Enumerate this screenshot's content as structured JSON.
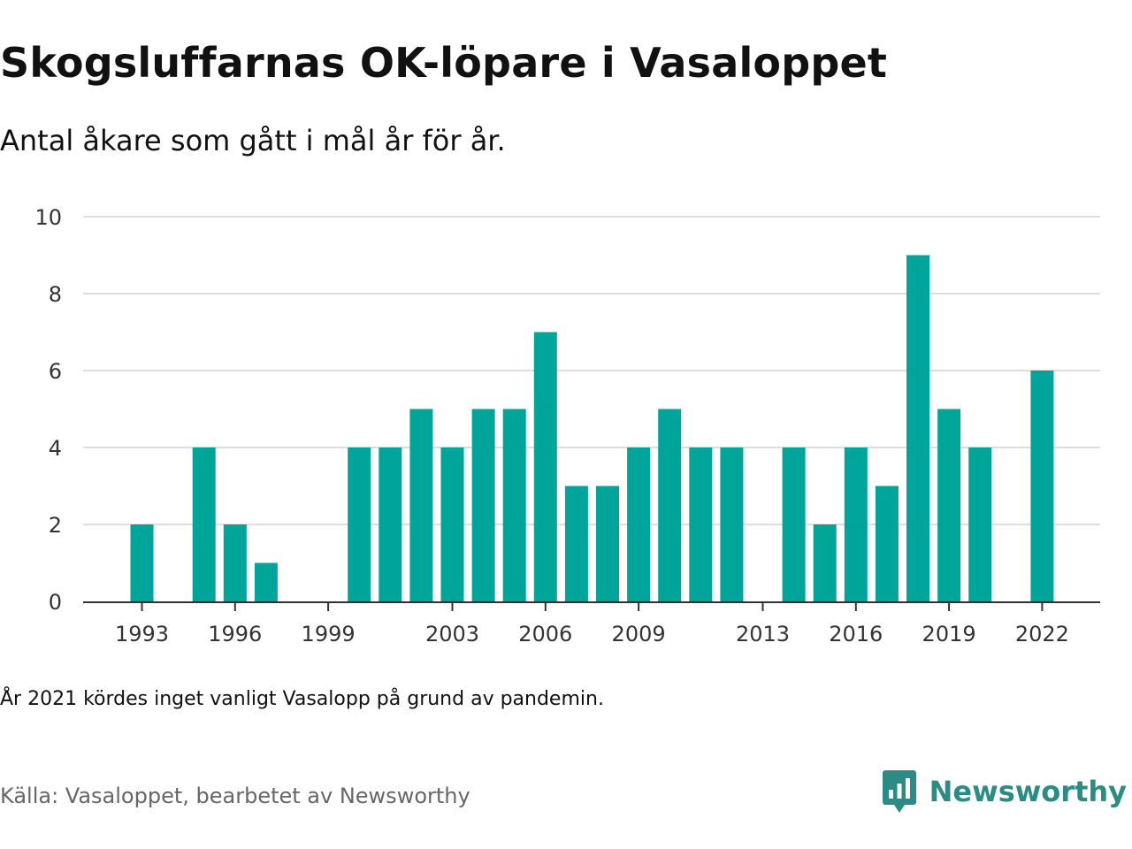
{
  "header": {
    "title": "Skogsluffarnas OK-löpare i Vasaloppet",
    "subtitle": "Antal åkare som gått i mål år för år."
  },
  "footer": {
    "note": "År 2021 kördes inget vanligt Vasalopp på grund av pandemin.",
    "source": "Källa: Vasaloppet, bearbetet av Newsworthy",
    "brand": "Newsworthy"
  },
  "colors": {
    "bar": "#00a59a",
    "grid": "#dddddd",
    "axis": "#333333",
    "brand": "#2a8c84"
  },
  "chart_data": {
    "type": "bar",
    "years": [
      1993,
      1994,
      1995,
      1996,
      1997,
      1998,
      1999,
      2000,
      2001,
      2002,
      2003,
      2004,
      2005,
      2006,
      2007,
      2008,
      2009,
      2010,
      2011,
      2012,
      2013,
      2014,
      2015,
      2016,
      2017,
      2018,
      2019,
      2020,
      2021,
      2022
    ],
    "values": [
      2,
      0,
      4,
      2,
      1,
      0,
      0,
      4,
      4,
      5,
      4,
      5,
      5,
      7,
      3,
      3,
      4,
      5,
      4,
      4,
      0,
      4,
      2,
      4,
      3,
      9,
      5,
      4,
      0,
      6
    ],
    "x_ticks": [
      "1993",
      "1996",
      "1999",
      "2003",
      "2006",
      "2009",
      "2013",
      "2016",
      "2019",
      "2022"
    ],
    "y_ticks": [
      "0",
      "2",
      "4",
      "6",
      "8",
      "10"
    ],
    "ylim": [
      0,
      10
    ],
    "grid": true
  }
}
